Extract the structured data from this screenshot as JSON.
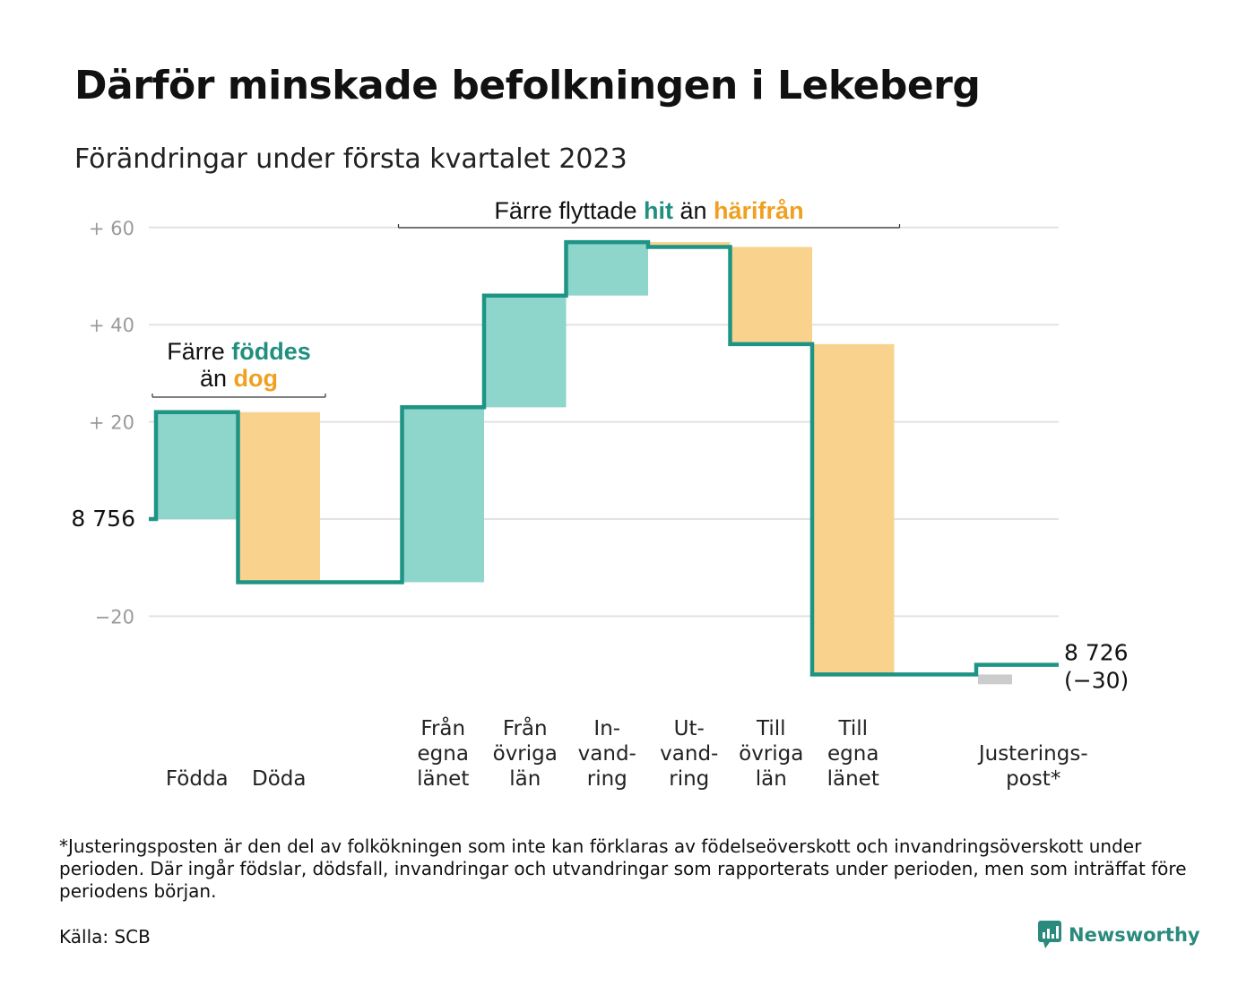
{
  "title": "Därför minskade befolkningen i Lekeberg",
  "subtitle": "Förändringar under första kvartalet 2023",
  "chart_data": {
    "type": "waterfall",
    "start_value": 8756,
    "start_label": "8 756",
    "end_value": 8726,
    "end_label": "8 726",
    "end_change_label": "(−30)",
    "ylim": [
      -37,
      63
    ],
    "yticks": [
      {
        "value": 60,
        "label": "+ 60"
      },
      {
        "value": 40,
        "label": "+ 40"
      },
      {
        "value": 20,
        "label": "+ 20"
      },
      {
        "value": 0,
        "label": ""
      },
      {
        "value": -20,
        "label": "−20"
      }
    ],
    "grid": true,
    "steps": [
      {
        "label_lines": [
          "Födda"
        ],
        "change": 22,
        "kind": "in"
      },
      {
        "label_lines": [
          "Döda"
        ],
        "change": -35,
        "kind": "out"
      },
      {
        "label_lines": [
          ""
        ],
        "change": 0,
        "kind": "gap"
      },
      {
        "label_lines": [
          "Från",
          "egna",
          "länet"
        ],
        "change": 36,
        "kind": "in"
      },
      {
        "label_lines": [
          "Från",
          "övriga",
          "län"
        ],
        "change": 23,
        "kind": "in"
      },
      {
        "label_lines": [
          "In-",
          "vand-",
          "ring"
        ],
        "change": 11,
        "kind": "in"
      },
      {
        "label_lines": [
          "Ut-",
          "vand-",
          "ring"
        ],
        "change": -1,
        "kind": "out"
      },
      {
        "label_lines": [
          "Till",
          "övriga",
          "län"
        ],
        "change": -20,
        "kind": "out"
      },
      {
        "label_lines": [
          "Till",
          "egna",
          "länet"
        ],
        "change": -68,
        "kind": "out"
      },
      {
        "label_lines": [
          ""
        ],
        "change": 0,
        "kind": "gap"
      },
      {
        "label_lines": [
          "Justerings-",
          "post*"
        ],
        "change": 2,
        "kind": "adjust"
      }
    ],
    "annotations": [
      {
        "parts": [
          {
            "text": "Färre ",
            "color": "#111111",
            "bold": false
          },
          {
            "text": "föddes",
            "color": "#1f8f80",
            "bold": true
          }
        ],
        "line2": [
          {
            "text": "än ",
            "color": "#111111",
            "bold": false
          },
          {
            "text": "dog",
            "color": "#f0a020",
            "bold": true
          }
        ],
        "from_step": 0,
        "to_step": 1
      },
      {
        "parts": [
          {
            "text": "Färre flyttade ",
            "color": "#111111",
            "bold": false
          },
          {
            "text": "hit",
            "color": "#1f8f80",
            "bold": true
          },
          {
            "text": " än ",
            "color": "#111111",
            "bold": false
          },
          {
            "text": "härifrån",
            "color": "#f0a020",
            "bold": true
          }
        ],
        "from_step": 3,
        "to_step": 8
      }
    ],
    "colors": {
      "line": "#1e9484",
      "in_fill": "#8ed5cb",
      "out_fill": "#f9d38d",
      "adjust_fill": "#cccccc",
      "grid": "#e2e2e2"
    }
  },
  "footnote": "*Justeringsposten är den del av folkökningen som inte kan förklaras av födelseöverskott och invandringsöverskott under perioden. Där ingår födslar, dödsfall, invandringar och utvandringar som rapporterats under perioden, men som inträffat före periodens början.",
  "source": "Källa: SCB",
  "brand": {
    "name": "Newsworthy",
    "icon": "newsworthy-logo-icon"
  }
}
